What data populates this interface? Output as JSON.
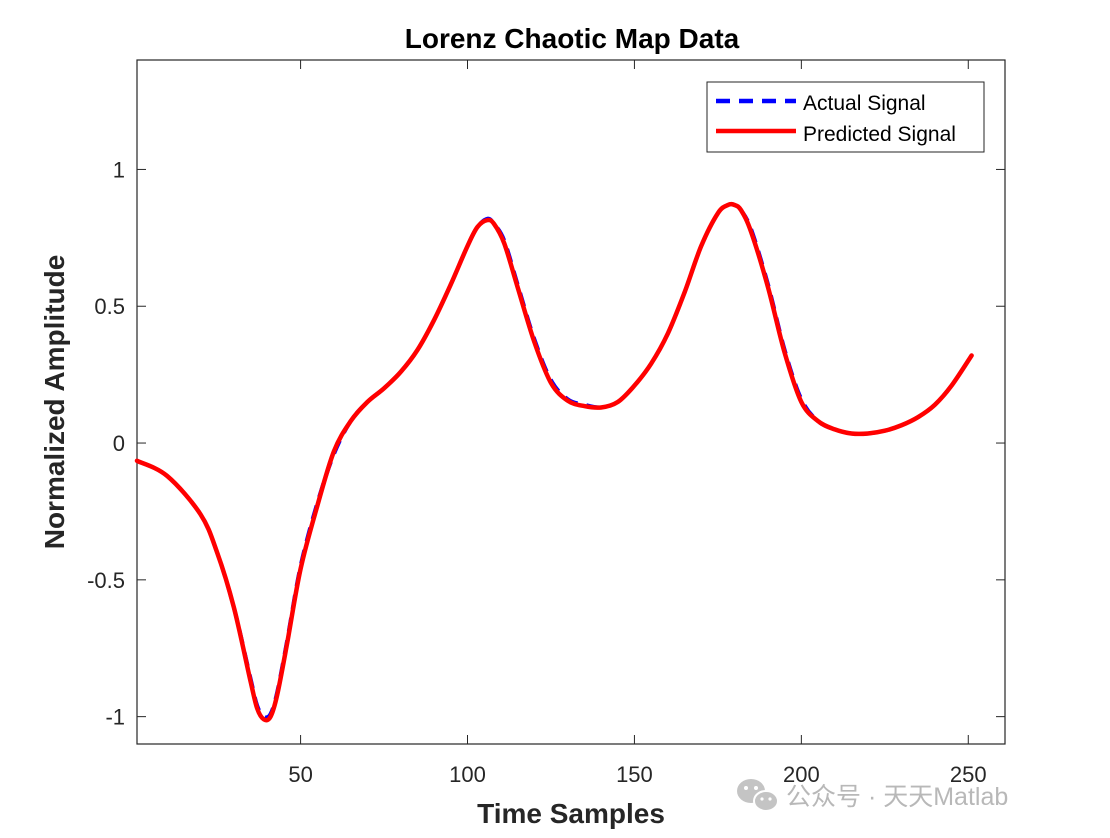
{
  "chart_data": {
    "type": "line",
    "title": "Lorenz Chaotic Map Data",
    "xlabel": "Time Samples",
    "ylabel": "Normalized Amplitude",
    "xlim": [
      1,
      261
    ],
    "ylim": [
      -1.1,
      1.4
    ],
    "xticks": [
      50,
      100,
      150,
      200,
      250
    ],
    "yticks": [
      -1,
      -0.5,
      0,
      0.5,
      1
    ],
    "xtick_labels": [
      "50",
      "100",
      "150",
      "200",
      "250"
    ],
    "ytick_labels": [
      "-1",
      "-0.5",
      "0",
      "0.5",
      "1"
    ],
    "grid": false,
    "legend_position": "top-right",
    "series": [
      {
        "name": "Actual Signal",
        "color": "#0000ff",
        "style": "dashed",
        "x": [
          1,
          10,
          20,
          25,
          30,
          35,
          37,
          39,
          41,
          43,
          46,
          50,
          55,
          60,
          65,
          70,
          75,
          80,
          85,
          90,
          95,
          100,
          103,
          106,
          108,
          111,
          115,
          120,
          125,
          130,
          135,
          140,
          145,
          150,
          155,
          160,
          165,
          170,
          175,
          178,
          180,
          182,
          185,
          190,
          195,
          200,
          205,
          210,
          215,
          220,
          225,
          230,
          235,
          240,
          245,
          251
        ],
        "y": [
          -0.065,
          -0.12,
          -0.26,
          -0.4,
          -0.6,
          -0.86,
          -0.96,
          -1.0,
          -0.99,
          -0.91,
          -0.72,
          -0.45,
          -0.22,
          -0.04,
          0.08,
          0.15,
          0.2,
          0.26,
          0.34,
          0.45,
          0.58,
          0.72,
          0.79,
          0.82,
          0.8,
          0.74,
          0.58,
          0.38,
          0.23,
          0.16,
          0.14,
          0.13,
          0.15,
          0.21,
          0.29,
          0.4,
          0.55,
          0.72,
          0.84,
          0.87,
          0.87,
          0.85,
          0.78,
          0.58,
          0.34,
          0.16,
          0.08,
          0.05,
          0.035,
          0.035,
          0.045,
          0.065,
          0.095,
          0.14,
          0.21,
          0.32
        ]
      },
      {
        "name": "Predicted Signal",
        "color": "#ff0000",
        "style": "solid",
        "x": [
          1,
          10,
          20,
          25,
          30,
          35,
          37,
          39,
          41,
          43,
          46,
          50,
          55,
          60,
          65,
          70,
          75,
          80,
          85,
          90,
          95,
          100,
          103,
          106,
          108,
          111,
          115,
          120,
          125,
          130,
          135,
          140,
          145,
          150,
          155,
          160,
          165,
          170,
          175,
          178,
          180,
          182,
          185,
          190,
          195,
          200,
          205,
          210,
          215,
          220,
          225,
          230,
          235,
          240,
          245,
          251
        ],
        "y": [
          -0.065,
          -0.12,
          -0.26,
          -0.4,
          -0.6,
          -0.87,
          -0.97,
          -1.01,
          -1.0,
          -0.92,
          -0.73,
          -0.46,
          -0.23,
          -0.03,
          0.08,
          0.15,
          0.2,
          0.26,
          0.34,
          0.45,
          0.58,
          0.72,
          0.79,
          0.815,
          0.8,
          0.73,
          0.57,
          0.37,
          0.22,
          0.155,
          0.135,
          0.13,
          0.15,
          0.21,
          0.29,
          0.4,
          0.55,
          0.72,
          0.84,
          0.87,
          0.87,
          0.85,
          0.77,
          0.57,
          0.33,
          0.15,
          0.08,
          0.05,
          0.035,
          0.035,
          0.045,
          0.065,
          0.095,
          0.14,
          0.21,
          0.32
        ]
      }
    ]
  },
  "watermark": {
    "text": "公众号 · 天天Matlab",
    "icon": "wechat-icon"
  }
}
